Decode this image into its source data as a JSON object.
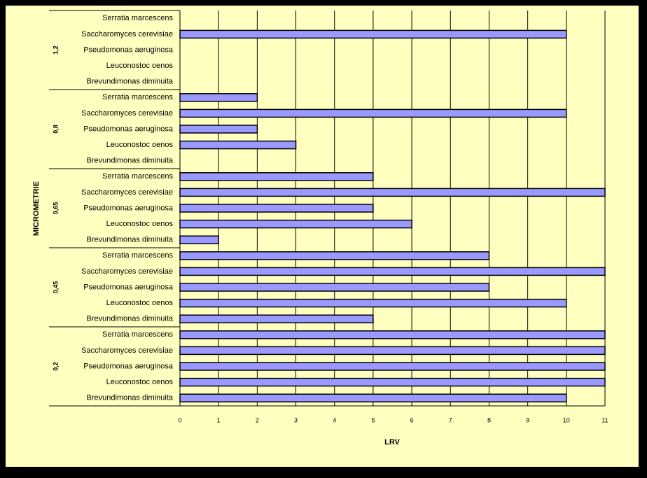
{
  "chart_data": {
    "type": "grouped-barh",
    "xlabel": "LRV",
    "ylabel": "MICROMETRIE",
    "groups": [
      {
        "name": "1,2",
        "categories": [
          "Serratia marcescens",
          "Saccharomyces cerevisiae",
          "Pseudomonas aeruginosa",
          "Leuconostoc oenos",
          "Brevundimonas diminuita"
        ],
        "values": [
          null,
          10,
          null,
          null,
          null
        ]
      },
      {
        "name": "0,8",
        "categories": [
          "Serratia marcescens",
          "Saccharomyces cerevisiae",
          "Pseudomonas aeruginosa",
          "Leuconostoc oenos",
          "Brevundimonas diminuita"
        ],
        "values": [
          2,
          10,
          2,
          3,
          null
        ]
      },
      {
        "name": "0,65",
        "categories": [
          "Serratia marcescens",
          "Saccharomyces cerevisiae",
          "Pseudomonas aeruginosa",
          "Leuconostoc oenos",
          "Brevundimonas diminuita"
        ],
        "values": [
          5,
          11,
          5,
          6,
          1
        ]
      },
      {
        "name": "0,45",
        "categories": [
          "Serratia marcescens",
          "Saccharomyces cerevisiae",
          "Pseudomonas aeruginosa",
          "Leuconostoc oenos",
          "Brevundimonas diminuita"
        ],
        "values": [
          8,
          11,
          8,
          10,
          5
        ]
      },
      {
        "name": "0,2",
        "categories": [
          "Serratia marcescens",
          "Saccharomyces cerevisiae",
          "Pseudomonas aeruginosa",
          "Leuconostoc oenos",
          "Brevundimonas diminuita"
        ],
        "values": [
          11,
          11,
          11,
          11,
          10
        ]
      }
    ],
    "color": "#9999ff",
    "xlim": [
      0,
      11
    ],
    "xticks": [
      0,
      1,
      2,
      3,
      4,
      5,
      6,
      7,
      8,
      9,
      10,
      11
    ],
    "grid": true
  }
}
